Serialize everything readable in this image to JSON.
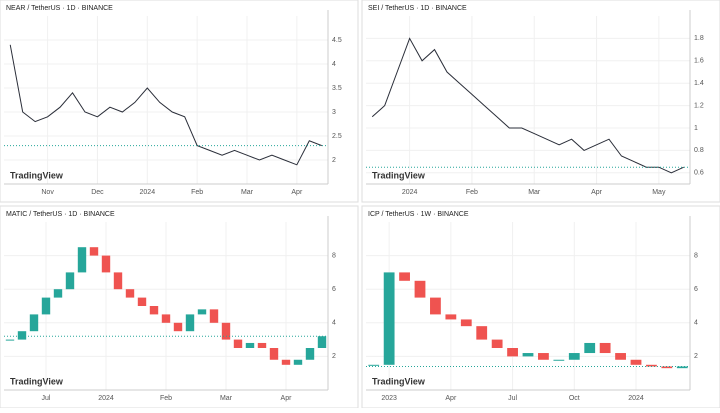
{
  "chart_data": [
    {
      "type": "line",
      "title": "NEAR / TetherUS · 1D · BINANCE",
      "watermark": "TradingView",
      "color": "#2a2e39",
      "grid": true,
      "categories": [
        null,
        null,
        null,
        "Nov",
        null,
        null,
        null,
        "Dec",
        null,
        null,
        null,
        "2024",
        null,
        null,
        null,
        "Feb",
        null,
        null,
        null,
        "Mar",
        null,
        null,
        null,
        "Apr",
        null,
        null
      ],
      "values": [
        4.4,
        3.0,
        2.8,
        2.9,
        3.1,
        3.4,
        3.0,
        2.9,
        3.1,
        3.0,
        3.2,
        3.5,
        3.2,
        3.0,
        2.9,
        2.3,
        2.2,
        2.1,
        2.2,
        2.1,
        2.0,
        2.1,
        2.0,
        1.9,
        2.4,
        2.3
      ],
      "ylim": [
        1.5,
        5
      ],
      "yticks": [
        2,
        2.5,
        3,
        3.5,
        4,
        4.5
      ]
    },
    {
      "type": "line",
      "title": "SEI / TetherUS · 1D · BINANCE",
      "watermark": "TradingView",
      "color": "#2a2e39",
      "grid": true,
      "categories": [
        null,
        null,
        null,
        "2024",
        null,
        null,
        null,
        null,
        "Feb",
        null,
        null,
        null,
        null,
        "Mar",
        null,
        null,
        null,
        null,
        "Apr",
        null,
        null,
        null,
        null,
        "May",
        null,
        null
      ],
      "values": [
        1.1,
        1.2,
        1.5,
        1.8,
        1.6,
        1.7,
        1.5,
        1.4,
        1.3,
        1.2,
        1.1,
        1.0,
        1.0,
        0.95,
        0.9,
        0.85,
        0.9,
        0.8,
        0.85,
        0.9,
        0.75,
        0.7,
        0.65,
        0.65,
        0.6,
        0.65
      ],
      "ylim": [
        0.5,
        2
      ],
      "yticks": [
        0.6,
        0.8,
        1,
        1.2,
        1.4,
        1.6,
        1.8
      ]
    },
    {
      "type": "candlestick",
      "title": "MATIC / TetherUS · 1D · BINANCE",
      "watermark": "TradingView",
      "up_color": "#26a69a",
      "down_color": "#ef5350",
      "grid": true,
      "categories": [
        null,
        null,
        null,
        "Jul",
        null,
        null,
        null,
        null,
        "2024",
        null,
        null,
        null,
        null,
        "Feb",
        null,
        null,
        null,
        null,
        "Mar",
        null,
        null,
        null,
        null,
        "Apr",
        null,
        null,
        null
      ],
      "values": [
        3,
        3.5,
        4.5,
        5.5,
        6,
        7,
        8.5,
        8,
        7,
        6,
        5.5,
        5,
        4.5,
        4,
        3.5,
        4.5,
        4.8,
        4,
        3,
        2.5,
        2.8,
        2.5,
        1.8,
        1.5,
        1.8,
        2.5,
        3.2
      ],
      "ylim": [
        0,
        10
      ],
      "yticks": [
        2,
        4,
        6,
        8
      ]
    },
    {
      "type": "candlestick",
      "title": "ICP / TetherUS · 1W · BINANCE",
      "watermark": "TradingView",
      "up_color": "#26a69a",
      "down_color": "#ef5350",
      "grid": true,
      "categories": [
        null,
        "2023",
        null,
        null,
        null,
        "Apr",
        null,
        null,
        null,
        "Jul",
        null,
        null,
        null,
        "Oct",
        null,
        null,
        null,
        "2024",
        null,
        null,
        null
      ],
      "values": [
        1.5,
        7,
        6.5,
        5.5,
        4.5,
        4.2,
        3.8,
        3,
        2.5,
        2,
        2.2,
        1.8,
        1.8,
        2.2,
        2.8,
        2.2,
        1.8,
        1.5,
        1.4,
        1.3,
        1.4
      ],
      "ylim": [
        0,
        10
      ],
      "yticks": [
        2,
        4,
        6,
        8
      ]
    }
  ]
}
